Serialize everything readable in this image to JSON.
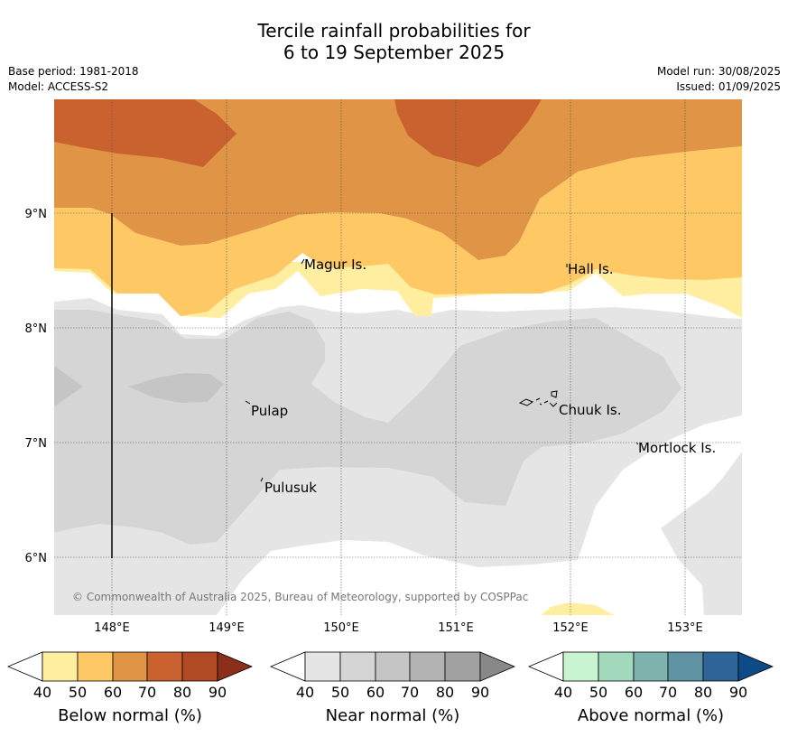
{
  "title": {
    "line1": "Tercile rainfall probabilities for",
    "line2": "6 to 19 September 2025"
  },
  "meta": {
    "base_period": "Base period: 1981-2018",
    "model": "Model: ACCESS-S2",
    "model_run": "Model run: 30/08/2025",
    "issued": "Issued: 01/09/2025"
  },
  "map": {
    "lat_labels": [
      "9°N",
      "8°N",
      "7°N",
      "6°N"
    ],
    "lon_labels": [
      "148°E",
      "149°E",
      "150°E",
      "151°E",
      "152°E",
      "153°E"
    ],
    "places": [
      "Magur Is.",
      "Hall Is.",
      "Pulap",
      "Chuuk Is.",
      "Mortlock Is.",
      "Pulusuk"
    ],
    "copyright": "© Commonwealth of Australia 2025, Bureau of Meteorology, supported by COSPPac"
  },
  "colorbars": [
    {
      "label": "Below normal (%)",
      "ticks": [
        "40",
        "50",
        "60",
        "70",
        "80",
        "90"
      ],
      "colors": [
        "#ffffff",
        "#ffeda0",
        "#fec965",
        "#e09445",
        "#c9622f",
        "#b04a25",
        "#8b2e1a"
      ]
    },
    {
      "label": "Near normal (%)",
      "ticks": [
        "40",
        "50",
        "60",
        "70",
        "80",
        "90"
      ],
      "colors": [
        "#ffffff",
        "#e5e5e5",
        "#d5d5d5",
        "#c5c5c5",
        "#b3b3b3",
        "#a1a1a1",
        "#888888"
      ]
    },
    {
      "label": "Above normal (%)",
      "ticks": [
        "40",
        "50",
        "60",
        "70",
        "80",
        "90"
      ],
      "colors": [
        "#ffffff",
        "#c8f5cf",
        "#a2d9bc",
        "#7fb3ad",
        "#5f93a3",
        "#2f6498",
        "#0e4a85"
      ]
    }
  ],
  "colors": {
    "below_60_70": "#e09445",
    "below_70_80": "#c9622f",
    "below_50_60": "#fec965",
    "below_40_50": "#ffeda0",
    "near_40_50": "#e5e5e5",
    "near_50_60": "#d5d5d5",
    "near_60_70": "#c5c5c5"
  }
}
